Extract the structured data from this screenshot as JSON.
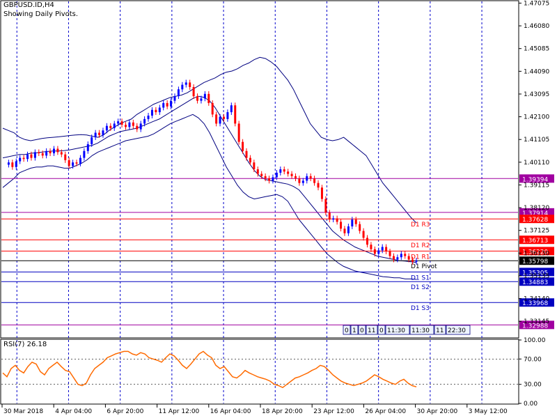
{
  "header": {
    "symbol": "GBPUSD.ID,H4",
    "subtitle": "Showing Daily Pivots."
  },
  "colors": {
    "up_candle": "#0000ff",
    "down_candle": "#ff0000",
    "bands": "#000080",
    "grid": "#0000cc",
    "pivot_resistance": "#ff0000",
    "pivot_support": "#0000c0",
    "magenta_line": "#a000a0",
    "rsi_line": "#ff6a00"
  },
  "chart_data": [
    {
      "type": "candlestick",
      "title": "GBPUSD.ID,H4",
      "subtitle": "Showing Daily Pivots.",
      "ylim": [
        1.3245,
        1.4715
      ],
      "y_ticks": [
        "1.47075",
        "1.46080",
        "1.45085",
        "1.44090",
        "1.43095",
        "1.42100",
        "1.41105",
        "1.40110",
        "1.39115",
        "1.38120",
        "1.37125",
        "1.36130",
        "1.35135",
        "1.34140",
        "1.33145"
      ],
      "x_ticks": [
        "30 Mar 2018",
        "4 Apr 04:00",
        "6 Apr 20:00",
        "11 Apr 12:00",
        "16 Apr 04:00",
        "18 Apr 20:00",
        "23 Apr 12:00",
        "26 Apr 04:00",
        "30 Apr 20:00",
        "3 May 12:00"
      ],
      "close_series": [
        1.4,
        1.401,
        1.399,
        1.4015,
        1.403,
        1.4025,
        1.4045,
        1.403,
        1.4055,
        1.405,
        1.404,
        1.406,
        1.405,
        1.407,
        1.4055,
        1.4045,
        1.402,
        1.3995,
        1.401,
        1.4005,
        1.403,
        1.406,
        1.409,
        1.412,
        1.414,
        1.413,
        1.415,
        1.417,
        1.416,
        1.418,
        1.419,
        1.4175,
        1.4165,
        1.4185,
        1.417,
        1.4155,
        1.418,
        1.42,
        1.4215,
        1.424,
        1.423,
        1.425,
        1.427,
        1.4255,
        1.428,
        1.43,
        1.433,
        1.435,
        1.436,
        1.434,
        1.43,
        1.428,
        1.429,
        1.431,
        1.427,
        1.422,
        1.418,
        1.421,
        1.42,
        1.423,
        1.426,
        1.418,
        1.41,
        1.406,
        1.403,
        1.401,
        1.398,
        1.396,
        1.395,
        1.394,
        1.393,
        1.3945,
        1.3965,
        1.398,
        1.397,
        1.396,
        1.395,
        1.394,
        1.392,
        1.393,
        1.395,
        1.394,
        1.392,
        1.39,
        1.385,
        1.379,
        1.376,
        1.3765,
        1.375,
        1.372,
        1.37,
        1.373,
        1.376,
        1.374,
        1.371,
        1.368,
        1.365,
        1.363,
        1.361,
        1.3625,
        1.364,
        1.362,
        1.36,
        1.3585,
        1.3595,
        1.361,
        1.36,
        1.3585,
        1.3575,
        1.358
      ],
      "bands": {
        "upper": [
          1.416,
          1.415,
          1.414,
          1.412,
          1.411,
          1.4105,
          1.411,
          1.4115,
          1.4118,
          1.412,
          1.4122,
          1.4125,
          1.4128,
          1.413,
          1.4132,
          1.413,
          1.4125,
          1.412,
          1.413,
          1.415,
          1.4165,
          1.418,
          1.419,
          1.42,
          1.422,
          1.4235,
          1.425,
          1.4265,
          1.4275,
          1.4285,
          1.4295,
          1.43,
          1.4305,
          1.4315,
          1.433,
          1.4345,
          1.436,
          1.437,
          1.438,
          1.4395,
          1.4405,
          1.441,
          1.442,
          1.4435,
          1.4445,
          1.446,
          1.447,
          1.4465,
          1.445,
          1.443,
          1.44,
          1.437,
          1.433,
          1.428,
          1.423,
          1.418,
          1.415,
          1.412,
          1.411,
          1.4105,
          1.411,
          1.412,
          1.41,
          1.408,
          1.406,
          1.404,
          1.4,
          1.396,
          1.392,
          1.389,
          1.386,
          1.383,
          1.38,
          1.377,
          1.3745
        ],
        "middle": [
          1.403,
          1.4035,
          1.404,
          1.4045,
          1.4045,
          1.405,
          1.4052,
          1.4055,
          1.4058,
          1.406,
          1.406,
          1.4062,
          1.4065,
          1.407,
          1.4075,
          1.408,
          1.4085,
          1.4095,
          1.411,
          1.4125,
          1.4135,
          1.4145,
          1.415,
          1.4155,
          1.416,
          1.417,
          1.418,
          1.419,
          1.42,
          1.4215,
          1.423,
          1.4245,
          1.426,
          1.4275,
          1.429,
          1.43,
          1.4295,
          1.428,
          1.425,
          1.421,
          1.417,
          1.413,
          1.409,
          1.405,
          1.401,
          1.3975,
          1.395,
          1.3935,
          1.393,
          1.3925,
          1.392,
          1.3915,
          1.3905,
          1.389,
          1.386,
          1.383,
          1.38,
          1.377,
          1.374,
          1.371,
          1.369,
          1.367,
          1.3655,
          1.364,
          1.363,
          1.362,
          1.361,
          1.36,
          1.3595,
          1.359,
          1.3585,
          1.358,
          1.3578,
          1.3575,
          1.3572
        ],
        "lower": [
          1.39,
          1.392,
          1.394,
          1.3965,
          1.3975,
          1.3985,
          1.399,
          1.399,
          1.3995,
          1.3995,
          1.399,
          1.3985,
          1.3985,
          1.3995,
          1.4005,
          1.402,
          1.404,
          1.4055,
          1.4065,
          1.4075,
          1.4085,
          1.4095,
          1.4105,
          1.411,
          1.4115,
          1.412,
          1.4125,
          1.4135,
          1.415,
          1.4165,
          1.418,
          1.419,
          1.42,
          1.421,
          1.422,
          1.4205,
          1.418,
          1.414,
          1.409,
          1.404,
          1.399,
          1.395,
          1.391,
          1.388,
          1.386,
          1.385,
          1.3855,
          1.386,
          1.3865,
          1.387,
          1.386,
          1.384,
          1.38,
          1.376,
          1.373,
          1.37,
          1.367,
          1.364,
          1.361,
          1.359,
          1.357,
          1.3555,
          1.3545,
          1.3535,
          1.353,
          1.3525,
          1.352,
          1.3515,
          1.351,
          1.3508,
          1.3505,
          1.3505,
          1.35,
          1.35,
          1.3498
        ]
      },
      "price_lines": [
        {
          "value": 1.39394,
          "label": "1.39394",
          "kind": "magenta"
        },
        {
          "value": 1.37914,
          "label": "1.37914",
          "kind": "magenta"
        },
        {
          "value": 1.37628,
          "label": "1.37628",
          "kind": "resistance",
          "name": "D1  R3"
        },
        {
          "value": 1.36713,
          "label": "1.36713",
          "kind": "resistance",
          "name": "D1  R2"
        },
        {
          "value": 1.3622,
          "label": "1.36220",
          "kind": "resistance",
          "name": "D1  R1"
        },
        {
          "value": 1.35798,
          "label": "1.35798",
          "kind": "current",
          "name": "D1  Pivot"
        },
        {
          "value": 1.35305,
          "label": "1.35305",
          "kind": "support",
          "name": "D1  S1"
        },
        {
          "value": 1.34883,
          "label": "1.34883",
          "kind": "support",
          "name": "D1  S2"
        },
        {
          "value": 1.33968,
          "label": "1.33968",
          "kind": "support",
          "name": "D1  S3"
        },
        {
          "value": 1.32988,
          "label": "1.32988",
          "kind": "magenta"
        }
      ],
      "timebox": [
        "0",
        "1",
        "0",
        "11",
        "0",
        "11:30",
        "11:30",
        "11",
        "22:30"
      ]
    },
    {
      "type": "line",
      "title": "RSI(7) 26.18",
      "ylim": [
        0,
        100
      ],
      "y_ticks": [
        "100.00",
        "70.00",
        "30.00",
        "0.00"
      ],
      "levels": [
        70,
        30
      ],
      "values": [
        48,
        42,
        55,
        60,
        52,
        48,
        58,
        65,
        62,
        50,
        45,
        55,
        60,
        65,
        58,
        52,
        50,
        40,
        30,
        28,
        32,
        45,
        55,
        60,
        65,
        72,
        75,
        78,
        80,
        82,
        82,
        78,
        76,
        80,
        78,
        72,
        70,
        68,
        65,
        72,
        78,
        75,
        68,
        60,
        55,
        62,
        70,
        78,
        82,
        76,
        72,
        60,
        55,
        58,
        50,
        42,
        40,
        45,
        52,
        48,
        45,
        42,
        40,
        38,
        35,
        30,
        28,
        25,
        30,
        35,
        40,
        42,
        45,
        48,
        52,
        55,
        60,
        58,
        52,
        45,
        40,
        35,
        32,
        30,
        28,
        30,
        32,
        35,
        40,
        45,
        42,
        38,
        35,
        32,
        30,
        35,
        38,
        32,
        28,
        26
      ]
    }
  ]
}
